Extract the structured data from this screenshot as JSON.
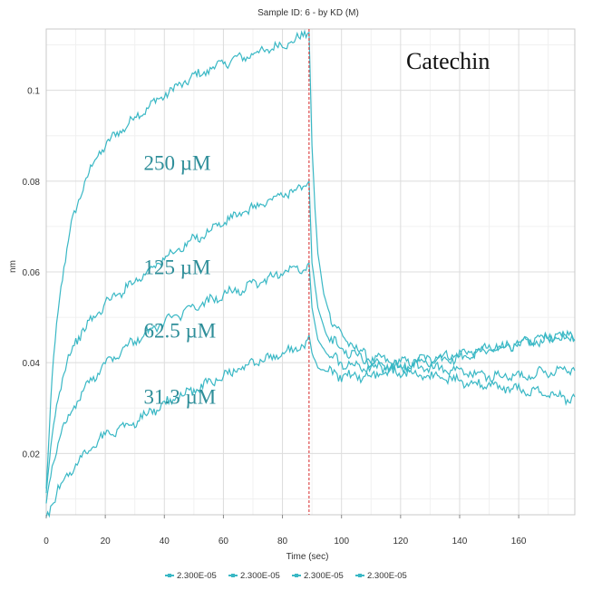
{
  "chart_data": {
    "type": "line",
    "title": "Sample ID: 6 - by KD (M)",
    "xlabel": "Time (sec)",
    "ylabel": "nm",
    "xlim": [
      0,
      179
    ],
    "ylim": [
      0.0065,
      0.1135
    ],
    "x_ticks": [
      0,
      20,
      40,
      60,
      80,
      100,
      120,
      140,
      160
    ],
    "x_tick_labels": [
      "0",
      "20",
      "40",
      "60",
      "80",
      "100",
      "120",
      "140",
      "160"
    ],
    "y_ticks": [
      0.02,
      0.04,
      0.06,
      0.08,
      0.1
    ],
    "y_tick_labels": [
      "0.02",
      "0.04",
      "0.06",
      "0.08",
      "0.1"
    ],
    "x_minor_step": 10,
    "y_minor_step": 0.01,
    "grid": true,
    "marker_line": {
      "x": 89,
      "color": "#d62728",
      "style": "dashed"
    },
    "compound_label": "Catechin",
    "series_color": "#3ab8c5",
    "label_color": "#2e8e99",
    "series": [
      {
        "name": "2.300E-05",
        "annotation": "250 µM",
        "annotation_anchor": [
          33,
          0.0825
        ],
        "points": [
          [
            0,
            0.012
          ],
          [
            1,
            0.024
          ],
          [
            2,
            0.036
          ],
          [
            3,
            0.045
          ],
          [
            5,
            0.057
          ],
          [
            8,
            0.069
          ],
          [
            12,
            0.078
          ],
          [
            16,
            0.084
          ],
          [
            20,
            0.088
          ],
          [
            25,
            0.091
          ],
          [
            30,
            0.094
          ],
          [
            40,
            0.099
          ],
          [
            50,
            0.103
          ],
          [
            60,
            0.106
          ],
          [
            70,
            0.108
          ],
          [
            80,
            0.11
          ],
          [
            86,
            0.1115
          ],
          [
            88,
            0.1125
          ],
          [
            89,
            0.1128
          ],
          [
            90,
            0.088
          ],
          [
            91,
            0.074
          ],
          [
            92,
            0.064
          ],
          [
            94,
            0.055
          ],
          [
            97,
            0.049
          ],
          [
            100,
            0.046
          ],
          [
            105,
            0.043
          ],
          [
            110,
            0.041
          ],
          [
            120,
            0.04
          ],
          [
            130,
            0.041
          ],
          [
            140,
            0.042
          ],
          [
            150,
            0.043
          ],
          [
            160,
            0.044
          ],
          [
            170,
            0.045
          ],
          [
            179,
            0.046
          ]
        ]
      },
      {
        "name": "2.300E-05",
        "annotation": "125 µM",
        "annotation_anchor": [
          33,
          0.0595
        ],
        "points": [
          [
            0,
            0.01
          ],
          [
            1,
            0.017
          ],
          [
            2,
            0.024
          ],
          [
            4,
            0.033
          ],
          [
            7,
            0.04
          ],
          [
            10,
            0.045
          ],
          [
            15,
            0.049
          ],
          [
            20,
            0.053
          ],
          [
            30,
            0.058
          ],
          [
            40,
            0.063
          ],
          [
            50,
            0.067
          ],
          [
            60,
            0.071
          ],
          [
            70,
            0.074
          ],
          [
            80,
            0.077
          ],
          [
            88,
            0.079
          ],
          [
            89,
            0.08
          ],
          [
            90,
            0.062
          ],
          [
            92,
            0.052
          ],
          [
            95,
            0.046
          ],
          [
            100,
            0.043
          ],
          [
            110,
            0.04
          ],
          [
            120,
            0.039
          ],
          [
            130,
            0.04
          ],
          [
            140,
            0.041
          ],
          [
            150,
            0.043
          ],
          [
            160,
            0.044
          ],
          [
            170,
            0.046
          ],
          [
            179,
            0.046
          ]
        ]
      },
      {
        "name": "2.300E-05",
        "annotation": "62.5 µM",
        "annotation_anchor": [
          33,
          0.0455
        ],
        "points": [
          [
            0,
            0.009
          ],
          [
            1,
            0.014
          ],
          [
            3,
            0.02
          ],
          [
            6,
            0.026
          ],
          [
            10,
            0.031
          ],
          [
            15,
            0.036
          ],
          [
            20,
            0.04
          ],
          [
            30,
            0.045
          ],
          [
            40,
            0.049
          ],
          [
            50,
            0.052
          ],
          [
            60,
            0.055
          ],
          [
            70,
            0.057
          ],
          [
            80,
            0.06
          ],
          [
            88,
            0.061
          ],
          [
            89,
            0.062
          ],
          [
            90,
            0.052
          ],
          [
            92,
            0.045
          ],
          [
            95,
            0.042
          ],
          [
            100,
            0.04
          ],
          [
            110,
            0.039
          ],
          [
            120,
            0.039
          ],
          [
            130,
            0.039
          ],
          [
            140,
            0.038
          ],
          [
            150,
            0.037
          ],
          [
            160,
            0.037
          ],
          [
            170,
            0.038
          ],
          [
            179,
            0.039
          ]
        ]
      },
      {
        "name": "2.300E-05",
        "annotation": "31.3 µM",
        "annotation_anchor": [
          33,
          0.031
        ],
        "points": [
          [
            0,
            0.006
          ],
          [
            2,
            0.009
          ],
          [
            4,
            0.012
          ],
          [
            8,
            0.016
          ],
          [
            12,
            0.019
          ],
          [
            16,
            0.022
          ],
          [
            20,
            0.024
          ],
          [
            30,
            0.027
          ],
          [
            40,
            0.031
          ],
          [
            50,
            0.034
          ],
          [
            60,
            0.037
          ],
          [
            70,
            0.04
          ],
          [
            80,
            0.042
          ],
          [
            88,
            0.044
          ],
          [
            89,
            0.046
          ],
          [
            90,
            0.042
          ],
          [
            92,
            0.039
          ],
          [
            95,
            0.038
          ],
          [
            100,
            0.037
          ],
          [
            110,
            0.037
          ],
          [
            120,
            0.038
          ],
          [
            130,
            0.037
          ],
          [
            140,
            0.036
          ],
          [
            150,
            0.035
          ],
          [
            160,
            0.034
          ],
          [
            170,
            0.033
          ],
          [
            179,
            0.032
          ]
        ]
      }
    ],
    "legend": [
      "2.300E-05",
      "2.300E-05",
      "2.300E-05",
      "2.300E-05"
    ],
    "legend_position": "bottom-center"
  }
}
